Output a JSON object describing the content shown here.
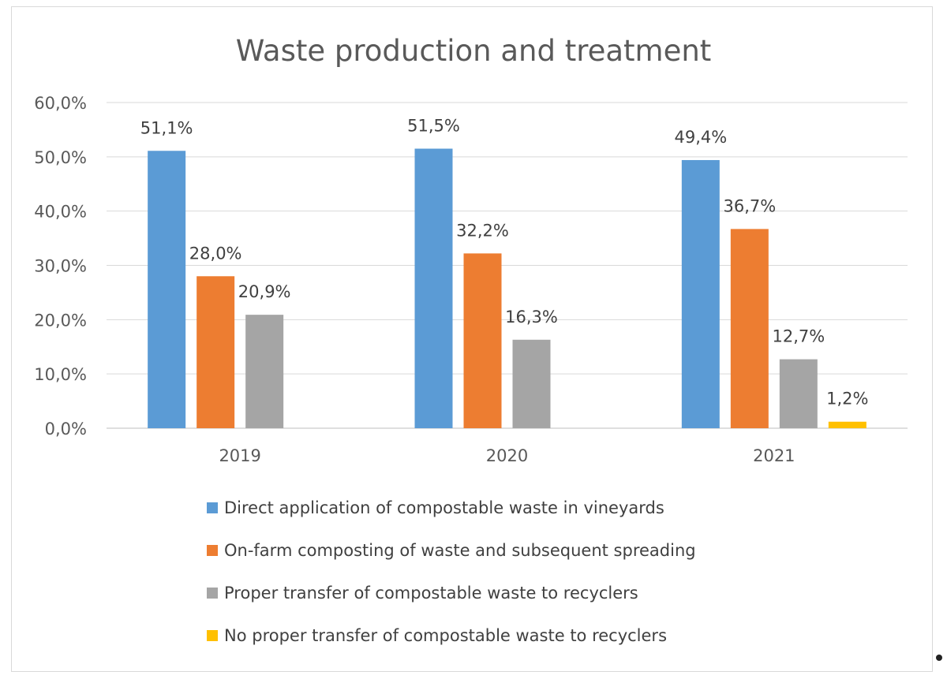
{
  "chart_data": {
    "type": "bar",
    "title": "Waste production and treatment",
    "categories": [
      "2019",
      "2020",
      "2021"
    ],
    "series": [
      {
        "name": "Direct application of compostable waste in vineyards",
        "color": "#5b9bd5",
        "values": [
          51.1,
          51.5,
          49.4
        ],
        "labels": [
          "51,1%",
          "51,5%",
          "49,4%"
        ]
      },
      {
        "name": "On-farm composting of waste and subsequent spreading",
        "color": "#ed7d31",
        "values": [
          28.0,
          32.2,
          36.7
        ],
        "labels": [
          "28,0%",
          "32,2%",
          "36,7%"
        ]
      },
      {
        "name": "Proper transfer of compostable waste to recyclers",
        "color": "#a5a5a5",
        "values": [
          20.9,
          16.3,
          12.7
        ],
        "labels": [
          "20,9%",
          "16,3%",
          "12,7%"
        ]
      },
      {
        "name": "No proper transfer of compostable waste to recyclers",
        "color": "#ffc000",
        "values": [
          null,
          null,
          1.2
        ],
        "labels": [
          null,
          null,
          "1,2%"
        ]
      }
    ],
    "ylim": [
      0,
      60
    ],
    "yticks": [
      0,
      10,
      20,
      30,
      40,
      50,
      60
    ],
    "ytick_labels": [
      "0,0%",
      "10,0%",
      "20,0%",
      "30,0%",
      "40,0%",
      "50,0%",
      "60,0%"
    ],
    "xlabel": "",
    "ylabel": "",
    "grid": true,
    "legend_position": "bottom"
  }
}
